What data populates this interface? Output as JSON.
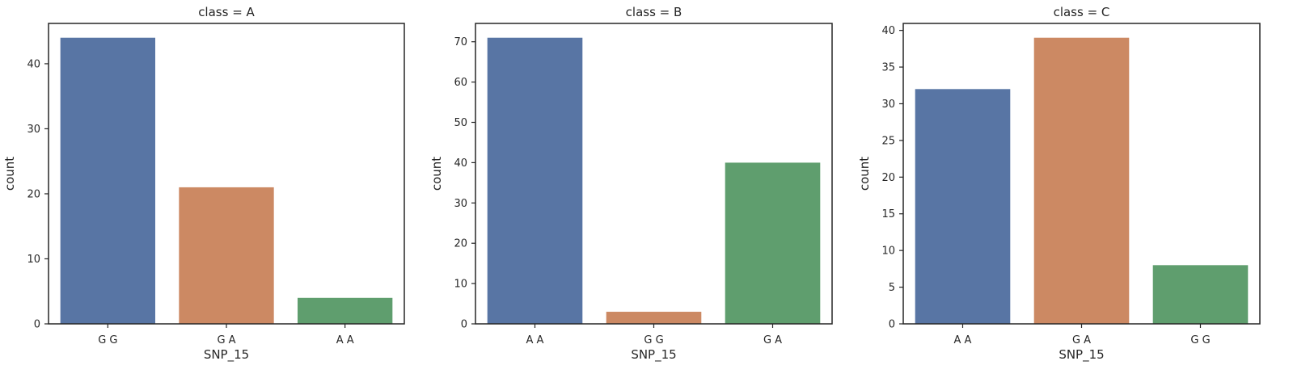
{
  "colors": {
    "A A": "#5875a4",
    "G G": "#5875a4",
    "G A": "#cc8963",
    "bar_blue": "#5875a4",
    "bar_orange": "#cc8963",
    "bar_green": "#5f9e6e"
  },
  "chart_data": [
    {
      "type": "bar",
      "title": "class = A",
      "xlabel": "SNP_15",
      "ylabel": "count",
      "categories": [
        "G G",
        "G A",
        "A A"
      ],
      "values": [
        44,
        21,
        4
      ],
      "bar_colors": [
        "#5875a4",
        "#cc8963",
        "#5f9e6e"
      ],
      "ylim": [
        0,
        46.2
      ],
      "yticks": [
        0,
        10,
        20,
        30,
        40
      ],
      "grid": false
    },
    {
      "type": "bar",
      "title": "class = B",
      "xlabel": "SNP_15",
      "ylabel": "count",
      "categories": [
        "A A",
        "G G",
        "G A"
      ],
      "values": [
        71,
        3,
        40
      ],
      "bar_colors": [
        "#5875a4",
        "#cc8963",
        "#5f9e6e"
      ],
      "ylim": [
        0,
        74.55
      ],
      "yticks": [
        0,
        10,
        20,
        30,
        40,
        50,
        60,
        70
      ],
      "grid": false
    },
    {
      "type": "bar",
      "title": "class = C",
      "xlabel": "SNP_15",
      "ylabel": "count",
      "categories": [
        "A A",
        "G A",
        "G G"
      ],
      "values": [
        32,
        39,
        8
      ],
      "bar_colors": [
        "#5875a4",
        "#cc8963",
        "#5f9e6e"
      ],
      "ylim": [
        0,
        40.95
      ],
      "yticks": [
        0,
        5,
        10,
        15,
        20,
        25,
        30,
        35,
        40
      ],
      "grid": false
    }
  ]
}
